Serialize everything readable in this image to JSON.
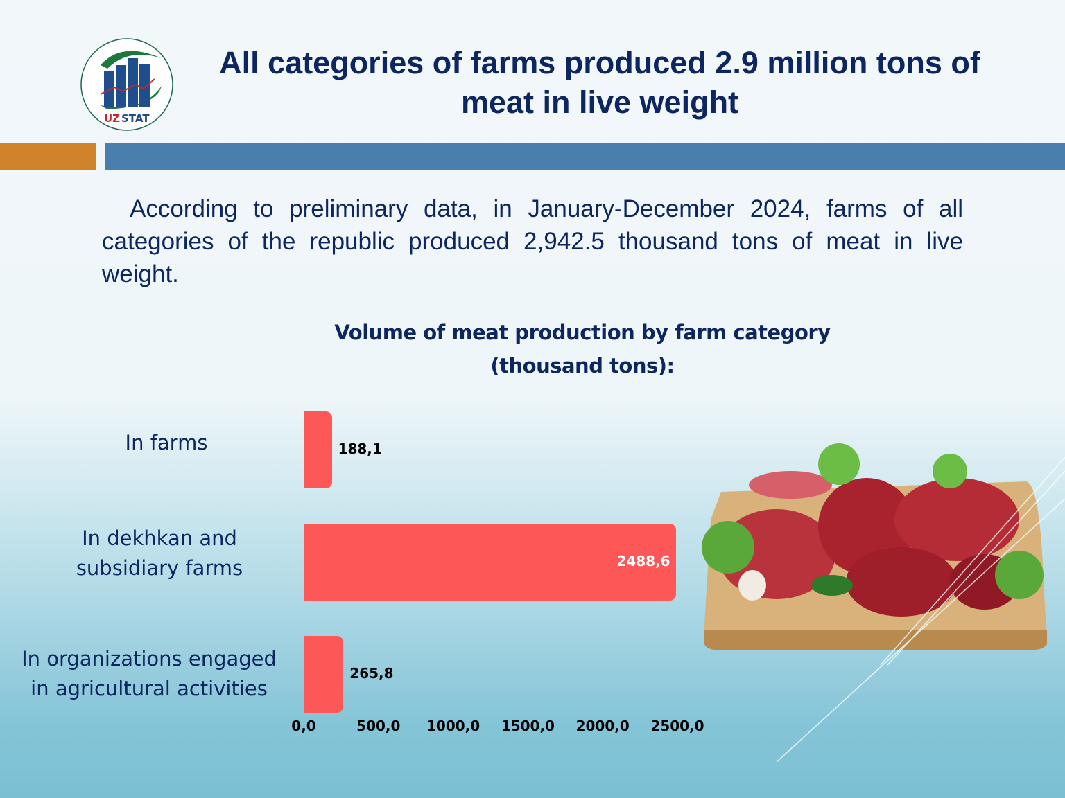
{
  "header": {
    "logo_text": "UZSTAT",
    "title": "All categories of farms produced 2.9 million tons of meat in live weight"
  },
  "intro": "According to preliminary data, in January-December 2024, farms of all categories of the republic produced 2,942.5 thousand tons of meat in live weight.",
  "colors": {
    "title": "#0d2660",
    "bar": "#fd5758",
    "accent_orange": "#d0832a",
    "accent_blue": "#4a7fad"
  },
  "chart_data": {
    "type": "bar",
    "orientation": "horizontal",
    "title": "Volume of meat production by farm category",
    "subtitle": "(thousand tons):",
    "categories": [
      "In farms",
      "In dekhkan and subsidiary farms",
      "In organizations engaged in agricultural activities"
    ],
    "values": [
      188.1,
      2488.6,
      265.8
    ],
    "data_labels": [
      "188,1",
      "2488,6",
      "265,8"
    ],
    "xlim": [
      0,
      2500
    ],
    "x_ticks": [
      "0,0",
      "500,0",
      "1000,0",
      "1500,0",
      "2000,0",
      "2500,0"
    ],
    "grid": false
  },
  "image": {
    "icon": "meat-on-cutting-board"
  }
}
